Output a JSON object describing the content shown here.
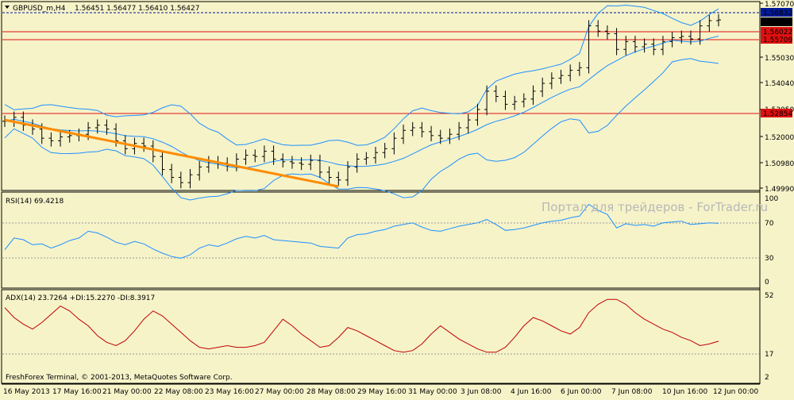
{
  "header": {
    "symbol_label": "GBPUSD_m,H4",
    "ohlc_label": "1.56451 1.56477 1.56410 1.56427"
  },
  "main_pane": {
    "price_axis_labels": [
      "1.57070",
      "1.55030",
      "1.54040",
      "1.53050",
      "1.52000",
      "1.50980",
      "1.49990"
    ],
    "price_tags": [
      {
        "value": "1.56832",
        "bg": "#001a9c",
        "fg": "#ffffff"
      },
      {
        "value": "1.56427",
        "bg": "#000000",
        "fg": "#ffffff"
      },
      {
        "value": "1.56022",
        "bg": "#e01010",
        "fg": "#ffffff"
      },
      {
        "value": "1.55709",
        "bg": "#e01010",
        "fg": "#ffffff"
      },
      {
        "value": "1.52854",
        "bg": "#e01010",
        "fg": "#ffffff"
      }
    ]
  },
  "rsi_pane": {
    "label": "RSI(14) 69.4218",
    "levels": [
      "100",
      "70",
      "30",
      "0"
    ]
  },
  "adx_pane": {
    "label": "ADX(14) 23.7264 +DI:15.2270 -DI:8.3917",
    "levels": [
      "52",
      "17",
      "2"
    ]
  },
  "watermark": "Портал для трейдеров - ForTrader.ru",
  "copyright": "FreshForex Terminal, © 2001-2013, MetaQuotes Software Corp.",
  "time_axis_labels": [
    "16 May 2013",
    "17 May 16:00",
    "21 May 00:00",
    "22 May 08:00",
    "23 May 16:00",
    "27 May 00:00",
    "28 May 08:00",
    "29 May 16:00",
    "31 May 00:00",
    "3 Jun 08:00",
    "4 Jun 16:00",
    "6 Jun 00:00",
    "7 Jun 08:00",
    "10 Jun 16:00",
    "12 Jun 00:00"
  ],
  "colors": {
    "background": "#f6f3c9",
    "candles": "#000000",
    "bollinger": "#1e90ff",
    "rsi": "#1e90ff",
    "adx": "#c00000",
    "trendline": "#ff8c00",
    "horizontal_levels": "#e01010"
  },
  "chart_data": [
    {
      "type": "candlestick",
      "pane": "main",
      "symbol": "GBPUSD_m",
      "timeframe": "H4",
      "last_bar": {
        "open": 1.56451,
        "high": 1.56477,
        "low": 1.5641,
        "close": 1.56427
      },
      "close_series": [
        1.5255,
        1.527,
        1.524,
        1.5225,
        1.519,
        1.518,
        1.5195,
        1.52,
        1.5205,
        1.523,
        1.524,
        1.5225,
        1.518,
        1.515,
        1.517,
        1.516,
        1.512,
        1.507,
        1.504,
        1.502,
        1.505,
        1.508,
        1.51,
        1.5095,
        1.5085,
        1.511,
        1.5125,
        1.512,
        1.514,
        1.511,
        1.51,
        1.5095,
        1.509,
        1.5105,
        1.506,
        1.504,
        1.503,
        1.508,
        1.511,
        1.5115,
        1.5135,
        1.515,
        1.519,
        1.522,
        1.523,
        1.5215,
        1.52,
        1.519,
        1.5205,
        1.523,
        1.526,
        1.53,
        1.537,
        1.535,
        1.532,
        1.533,
        1.534,
        1.537,
        1.54,
        1.542,
        1.543,
        1.545,
        1.546,
        1.562,
        1.56,
        1.559,
        1.553,
        1.556,
        1.554,
        1.555,
        1.553,
        1.556,
        1.5575,
        1.558,
        1.557,
        1.562,
        1.564,
        1.5643
      ],
      "ylim": [
        1.4999,
        1.5707
      ],
      "horizontal_levels": [
        1.56832,
        1.56022,
        1.55709,
        1.52854
      ],
      "trendline": {
        "from_close_index": 0,
        "to_close_index": 36,
        "from_value": 1.526,
        "to_value": 1.5005
      },
      "indicators": [
        "Bollinger Bands"
      ]
    },
    {
      "type": "line",
      "pane": "rsi",
      "name": "RSI(14)",
      "last_value": 69.4218,
      "levels": [
        70,
        30
      ],
      "ylim": [
        0,
        100
      ],
      "values": [
        38,
        52,
        50,
        44,
        45,
        40,
        44,
        49,
        52,
        60,
        58,
        53,
        47,
        44,
        48,
        45,
        39,
        34,
        30,
        28,
        32,
        40,
        44,
        42,
        46,
        51,
        54,
        52,
        55,
        50,
        49,
        48,
        47,
        46,
        42,
        41,
        40,
        52,
        56,
        57,
        60,
        62,
        66,
        68,
        70,
        65,
        61,
        60,
        63,
        66,
        68,
        70,
        74,
        68,
        61,
        62,
        64,
        67,
        70,
        72,
        73,
        76,
        78,
        92,
        85,
        80,
        64,
        69,
        67,
        68,
        66,
        70,
        71,
        72,
        68,
        69,
        70,
        69.4
      ]
    },
    {
      "type": "line",
      "pane": "adx",
      "name": "ADX(14)",
      "last_value": 23.7264,
      "plus_di": 15.227,
      "minus_di": 8.3917,
      "levels": [
        17
      ],
      "ylim": [
        2,
        52
      ],
      "values": [
        44,
        38,
        34,
        31,
        35,
        40,
        45,
        42,
        37,
        33,
        27,
        23,
        21,
        24,
        30,
        37,
        42,
        39,
        34,
        29,
        24,
        20,
        19,
        20,
        21,
        20,
        20,
        21,
        23,
        30,
        37,
        33,
        28,
        24,
        20,
        21,
        26,
        32,
        30,
        27,
        24,
        21,
        18,
        17,
        18,
        22,
        28,
        33,
        29,
        25,
        22,
        19,
        17,
        17,
        20,
        26,
        33,
        38,
        36,
        33,
        30,
        28,
        32,
        41,
        46,
        49,
        49,
        46,
        41,
        37,
        34,
        31,
        29,
        26,
        24,
        21,
        22,
        23.7
      ]
    }
  ]
}
